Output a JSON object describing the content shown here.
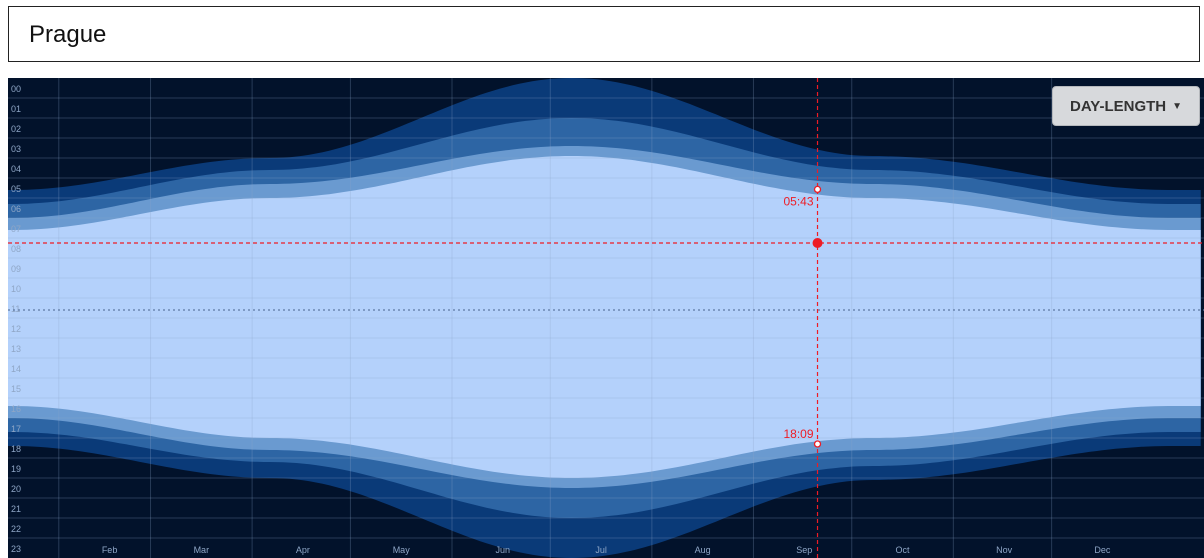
{
  "header": {
    "city": "Prague"
  },
  "controls": {
    "mode_label": "DAY-LENGTH",
    "caret_icon": "caret-down-icon"
  },
  "chart_data": {
    "type": "area",
    "title": "",
    "ylabel": "",
    "xlabel": "",
    "y_ticks": [
      "00",
      "01",
      "02",
      "03",
      "04",
      "05",
      "06",
      "07",
      "08",
      "09",
      "10",
      "11",
      "12",
      "13",
      "14",
      "15",
      "16",
      "17",
      "18",
      "19",
      "20",
      "21",
      "22",
      "23"
    ],
    "x_ticks": [
      "Feb",
      "Mar",
      "Apr",
      "May",
      "Jun",
      "Jul",
      "Aug",
      "Sep",
      "Oct",
      "Nov",
      "Dec"
    ],
    "ylim": [
      0,
      24
    ],
    "xlim_days": [
      0,
      365
    ],
    "x_tick_days": [
      31,
      59,
      90,
      120,
      151,
      181,
      212,
      243,
      273,
      304,
      334
    ],
    "series": [
      {
        "band": "astronomical_twilight",
        "days": [
          1,
          80,
          172,
          264,
          355
        ],
        "start": [
          5.6,
          4.0,
          0.0,
          3.9,
          5.6
        ],
        "end": [
          18.4,
          20.0,
          24.0,
          20.1,
          18.4
        ]
      },
      {
        "band": "nautical_twilight",
        "days": [
          1,
          80,
          172,
          264,
          355
        ],
        "start": [
          6.3,
          4.6,
          2.0,
          4.6,
          6.3
        ],
        "end": [
          17.7,
          19.2,
          22.0,
          19.4,
          17.7
        ]
      },
      {
        "band": "civil_twilight",
        "days": [
          1,
          80,
          172,
          264,
          355
        ],
        "start": [
          7.0,
          5.3,
          3.4,
          5.3,
          7.0
        ],
        "end": [
          17.0,
          18.6,
          20.5,
          18.6,
          17.0
        ]
      },
      {
        "band": "daylight",
        "days": [
          1,
          80,
          172,
          264,
          355
        ],
        "start": [
          7.6,
          6.0,
          3.9,
          6.0,
          7.6
        ],
        "end": [
          16.4,
          18.0,
          20.0,
          18.0,
          16.4
        ]
      }
    ],
    "cursor": {
      "month": "Sep",
      "day": 244,
      "time": 8.5,
      "sunrise_label": "05:43",
      "sunset_label": "18:09",
      "sunrise": 5.72,
      "sunset": 18.15
    },
    "noon_line": 11.5,
    "colors": {
      "night": "#02122b",
      "astronomical": "#0a3a78",
      "nautical": "#2d65a4",
      "civil": "#6a9ad0",
      "day": "#b4d1fb",
      "cursor": "#ee1c25",
      "grid_dark": "#1c2c44",
      "grid_light": "#9db8de"
    },
    "grid": true
  }
}
